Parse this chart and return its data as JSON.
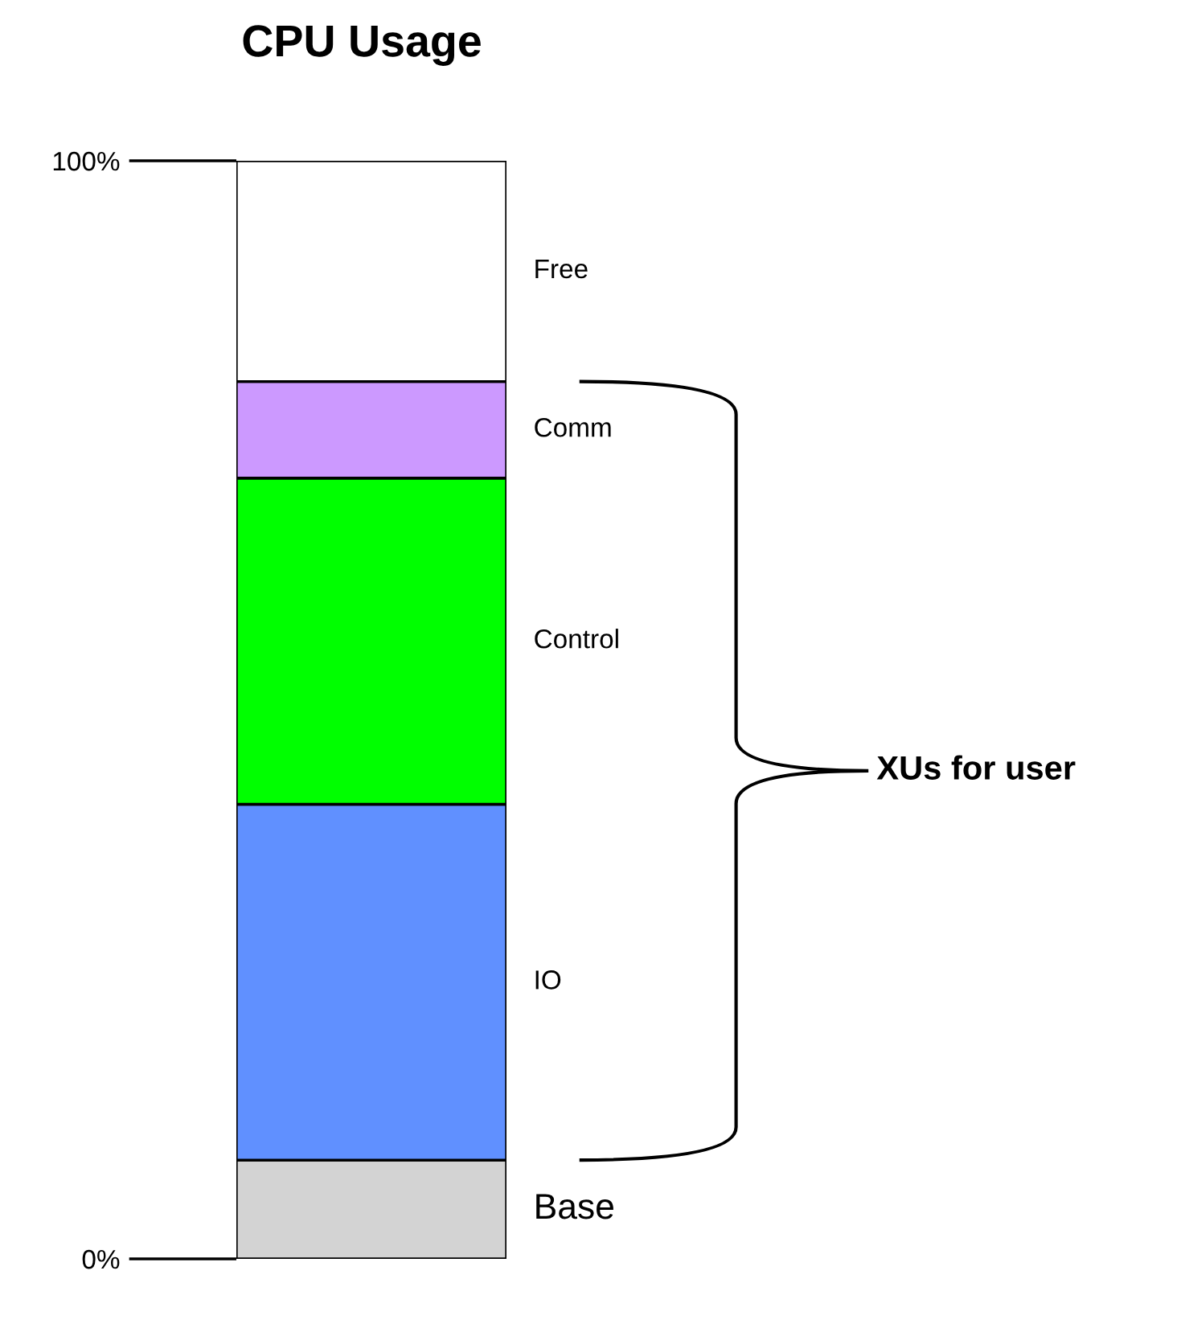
{
  "chart_data": {
    "type": "bar",
    "title": "CPU Usage",
    "categories": [
      null
    ],
    "stacked": true,
    "series": [
      {
        "name": "Base",
        "color": "#d3d3d3",
        "values": [
          9
        ]
      },
      {
        "name": "IO",
        "color": "#6090ff",
        "values": [
          32.4
        ]
      },
      {
        "name": "Control",
        "color": "#00ff00",
        "values": [
          29.7
        ]
      },
      {
        "name": "Comm",
        "color": "#cc99ff",
        "values": [
          8.8
        ]
      },
      {
        "name": "Free",
        "color": "#ffffff",
        "values": [
          20.1
        ]
      }
    ],
    "ylim": [
      0,
      100
    ],
    "yticks": [
      {
        "value": 0,
        "label": "0%"
      },
      {
        "value": 100,
        "label": "100%"
      }
    ],
    "annotations": [
      "XUs for user"
    ],
    "tick_labels": "y",
    "grid": false,
    "legend": false
  }
}
